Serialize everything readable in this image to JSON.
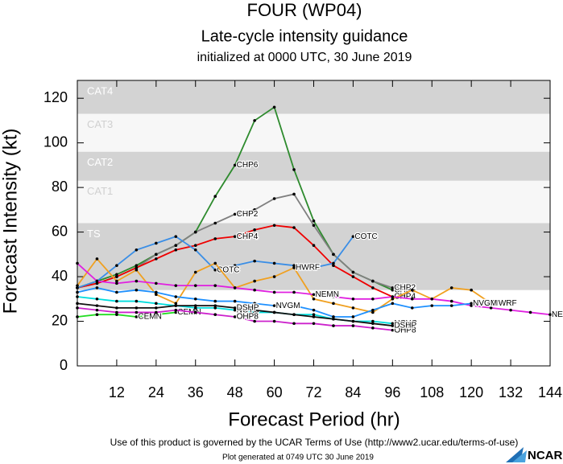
{
  "chart_data": {
    "type": "line",
    "title": "FOUR (WP04)",
    "subtitle": "Late-cycle intensity guidance",
    "initialized": "initialized at 0000 UTC, 30 June 2019",
    "x_label": "Forecast Period (hr)",
    "y_label": "Forecast Intensity (kt)",
    "footer": "Use of this product is governed by the UCAR Terms of Use (http://www2.ucar.edu/terms-of-use)",
    "generated": "Plot generated at 0749 UTC   30 June 2019",
    "logo": "NCAR",
    "xlim": [
      0,
      144
    ],
    "ylim": [
      0,
      128
    ],
    "xticks": [
      12,
      24,
      36,
      48,
      60,
      72,
      84,
      96,
      108,
      120,
      132,
      144
    ],
    "yticks": [
      0,
      20,
      40,
      60,
      80,
      100,
      120
    ],
    "bands": [
      {
        "label": "CAT4",
        "from": 113,
        "to": 128,
        "color": "#d3d3d3",
        "label_color": "#ffffff"
      },
      {
        "label": "CAT3",
        "from": 96,
        "to": 113,
        "color": "#f7f7f7",
        "label_color": "#d0d0d0"
      },
      {
        "label": "CAT2",
        "from": 83,
        "to": 96,
        "color": "#d3d3d3",
        "label_color": "#ffffff"
      },
      {
        "label": "CAT1",
        "from": 64,
        "to": 83,
        "color": "#f7f7f7",
        "label_color": "#d0d0d0"
      },
      {
        "label": "TS",
        "from": 34,
        "to": 64,
        "color": "#d3d3d3",
        "label_color": "#ffffff"
      }
    ],
    "series": [
      {
        "name": "CHP6",
        "color": "#2e8b2e",
        "x": [
          0,
          6,
          12,
          18,
          24,
          30,
          36,
          42,
          48,
          54,
          60,
          66,
          72,
          78,
          84,
          90,
          96
        ],
        "values": [
          35,
          38,
          41,
          45,
          50,
          54,
          60,
          76,
          90,
          110,
          116,
          88,
          65,
          50,
          42,
          38,
          34
        ]
      },
      {
        "name": "CHP2",
        "color": "#808080",
        "x": [
          0,
          6,
          12,
          18,
          24,
          30,
          36,
          42,
          48,
          54,
          60,
          66,
          72,
          78,
          84,
          90,
          96
        ],
        "values": [
          35,
          37,
          40,
          44,
          50,
          54,
          60,
          64,
          68,
          70,
          75,
          77,
          63,
          50,
          42,
          38,
          35
        ]
      },
      {
        "name": "CHP4",
        "color": "#ee0000",
        "x": [
          0,
          6,
          12,
          18,
          24,
          30,
          36,
          42,
          48,
          54,
          60,
          66,
          72,
          78,
          84,
          90,
          96
        ],
        "values": [
          35,
          37,
          40,
          44,
          48,
          52,
          54,
          57,
          58,
          61,
          63,
          62,
          54,
          45,
          40,
          35,
          31
        ]
      },
      {
        "name": "COTC",
        "color": "#3a8ee6",
        "x": [
          0,
          6,
          12,
          18,
          24,
          30,
          36,
          42,
          48,
          54,
          60,
          66,
          72,
          78,
          84
        ],
        "values": [
          35,
          38,
          45,
          52,
          55,
          58,
          52,
          43,
          45,
          47,
          46,
          45,
          44,
          46,
          58
        ]
      },
      {
        "name": "HWRF",
        "color": "#f0a020",
        "x": [
          0,
          6,
          12,
          18,
          24,
          30,
          36,
          42,
          48,
          54,
          60,
          66,
          72,
          78,
          84,
          90,
          96,
          102,
          108,
          114,
          120,
          126
        ],
        "values": [
          36,
          48,
          38,
          43,
          32,
          28,
          42,
          46,
          35,
          38,
          40,
          44,
          30,
          28,
          26,
          24,
          30,
          34,
          30,
          35,
          34,
          28
        ]
      },
      {
        "name": "NEMN",
        "color": "#e020e0",
        "x": [
          0,
          6,
          12,
          18,
          24,
          30,
          36,
          42,
          48,
          54,
          60,
          66,
          72,
          78,
          84,
          90,
          96,
          102,
          108,
          114,
          120,
          126,
          132,
          138,
          144
        ],
        "values": [
          46,
          38,
          37,
          38,
          37,
          36,
          36,
          36,
          35,
          34,
          33,
          33,
          32,
          31,
          30,
          30,
          31,
          30,
          30,
          29,
          27,
          26,
          25,
          24,
          23
        ]
      },
      {
        "name": "NVGM",
        "color": "#1e90ff",
        "x": [
          0,
          6,
          12,
          18,
          24,
          30,
          36,
          42,
          48,
          54,
          60,
          66,
          72,
          78,
          84,
          90,
          96,
          102,
          108,
          114,
          120
        ],
        "values": [
          33,
          35,
          33,
          34,
          33,
          31,
          30,
          29,
          29,
          28,
          27,
          27,
          25,
          22,
          22,
          25,
          28,
          26,
          27,
          27,
          28
        ]
      },
      {
        "name": "CEMN",
        "color": "#22dd22",
        "x": [
          0,
          6,
          12,
          18,
          24,
          30
        ],
        "values": [
          22,
          23,
          23,
          22,
          23,
          24
        ]
      },
      {
        "name": "NCYC",
        "color": "#00dddd",
        "x": [
          0,
          6,
          12,
          18,
          24,
          30,
          36,
          42,
          48,
          54,
          60,
          66,
          72,
          78,
          84,
          90,
          96
        ],
        "values": [
          31,
          30,
          29,
          29,
          28,
          27,
          26,
          26,
          25,
          24,
          24,
          23,
          23,
          21,
          20,
          20,
          19
        ]
      },
      {
        "name": "OHP8",
        "color": "#cc22cc",
        "x": [
          0,
          6,
          12,
          18,
          24,
          30,
          36,
          42,
          48,
          54,
          60,
          66,
          72,
          78,
          84,
          90,
          96
        ],
        "values": [
          26,
          25,
          24,
          24,
          24,
          25,
          24,
          23,
          22,
          20,
          20,
          19,
          19,
          18,
          18,
          17,
          16
        ]
      },
      {
        "name": "DSHP",
        "color": "#111111",
        "x": [
          0,
          6,
          12,
          18,
          24,
          30,
          36,
          42,
          48,
          54,
          60,
          66,
          72,
          78,
          84,
          90,
          96
        ],
        "values": [
          28,
          27,
          26,
          26,
          26,
          27,
          27,
          27,
          26,
          25,
          24,
          23,
          22,
          21,
          20,
          19,
          18
        ]
      }
    ]
  }
}
